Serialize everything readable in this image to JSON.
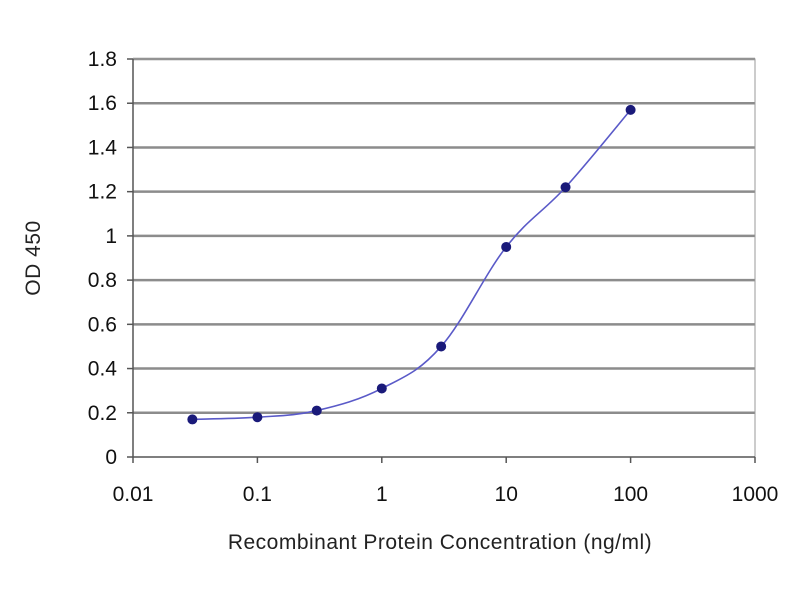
{
  "chart_data": {
    "type": "line",
    "title": "",
    "xlabel": "Recombinant Protein Concentration (ng/ml)",
    "ylabel": "OD 450",
    "xscale": "log",
    "xlim": [
      0.01,
      1000
    ],
    "ylim": [
      0,
      1.8
    ],
    "x_ticks": [
      0.01,
      0.1,
      1,
      10,
      100,
      1000
    ],
    "x_tick_labels": [
      "0.01",
      "0.1",
      "1",
      "10",
      "100",
      "1000"
    ],
    "y_ticks": [
      0,
      0.2,
      0.4,
      0.6,
      0.8,
      1,
      1.2,
      1.4,
      1.6,
      1.8
    ],
    "y_tick_labels": [
      "0",
      "0.2",
      "0.4",
      "0.6",
      "0.8",
      "1",
      "1.2",
      "1.4",
      "1.6",
      "1.8"
    ],
    "grid": true,
    "legend": "none",
    "series": [
      {
        "x": [
          0.03,
          0.1,
          0.3,
          1,
          3,
          10,
          30,
          100
        ],
        "y": [
          0.17,
          0.18,
          0.21,
          0.31,
          0.5,
          0.95,
          1.22,
          1.57
        ],
        "color": "#5a5ac8",
        "marker_color": "#1a1a7a"
      }
    ]
  }
}
